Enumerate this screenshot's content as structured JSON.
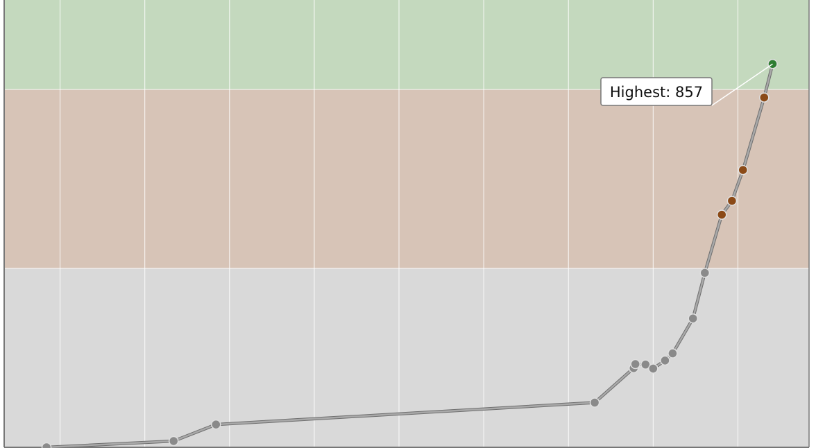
{
  "chart_data": {
    "type": "line",
    "title": "",
    "xlabel": "",
    "ylabel": "",
    "ylim": [
      0,
      1000
    ],
    "grid": true,
    "x_grid_lines": 9,
    "bands": [
      {
        "from": 800,
        "to": 1000,
        "color": "#c4d9be"
      },
      {
        "from": 400,
        "to": 800,
        "color": "#d7c4b7"
      },
      {
        "from": 0,
        "to": 400,
        "color": "#d9d9d9"
      }
    ],
    "series": [
      {
        "points": [
          {
            "x": 0.5,
            "y": 0
          },
          {
            "x": 2.0,
            "y": 14
          },
          {
            "x": 2.5,
            "y": 51
          },
          {
            "x": 6.97,
            "y": 100
          },
          {
            "x": 7.43,
            "y": 177
          },
          {
            "x": 7.45,
            "y": 186
          },
          {
            "x": 7.57,
            "y": 185
          },
          {
            "x": 7.66,
            "y": 176
          },
          {
            "x": 7.8,
            "y": 194
          },
          {
            "x": 7.89,
            "y": 210
          },
          {
            "x": 8.13,
            "y": 288
          },
          {
            "x": 8.27,
            "y": 390
          },
          {
            "x": 8.47,
            "y": 520
          },
          {
            "x": 8.59,
            "y": 551
          },
          {
            "x": 8.72,
            "y": 620
          },
          {
            "x": 8.97,
            "y": 782
          },
          {
            "x": 9.07,
            "y": 857
          }
        ]
      }
    ],
    "annotation": {
      "label": "Highest: 857",
      "value": 857
    },
    "colors": {
      "line": "#a9a9a9",
      "line_outline": "#6f6f6f",
      "point_default": "#8a8a8a",
      "point_mid": "#8b4a17",
      "point_high": "#2e7d32",
      "axis": "#777777",
      "grid": "#ffffff"
    }
  }
}
